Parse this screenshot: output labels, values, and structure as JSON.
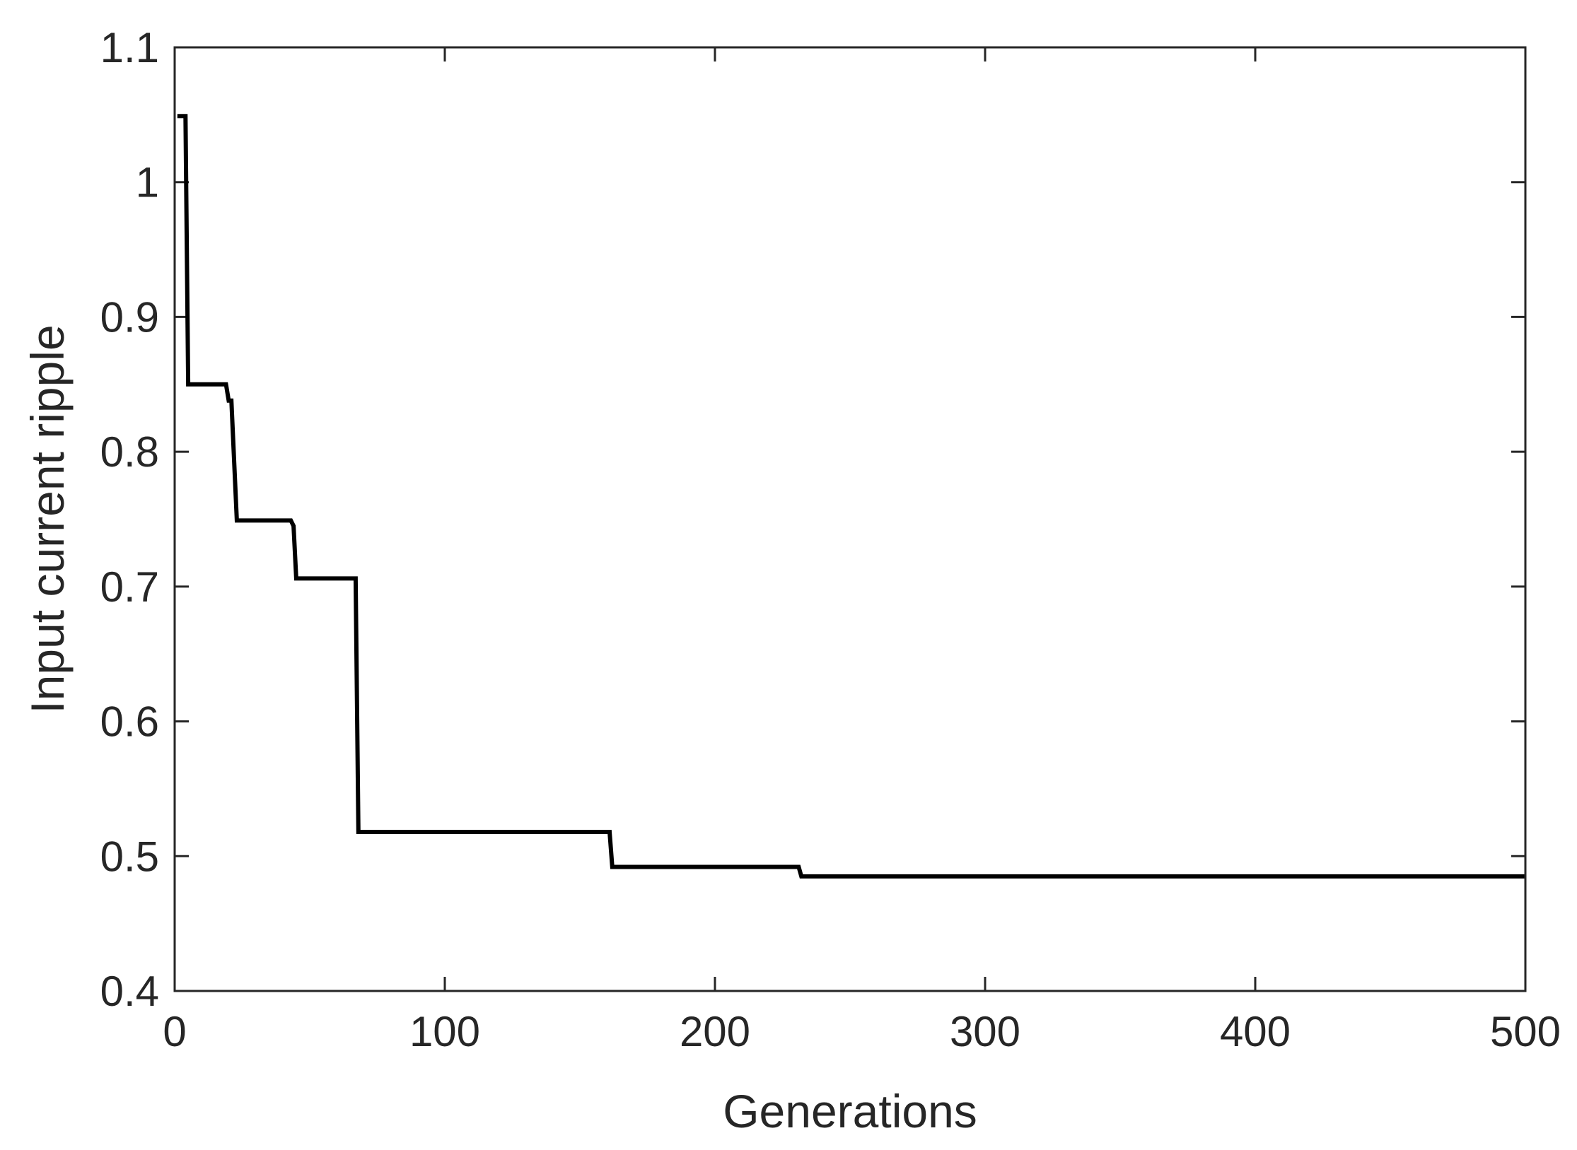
{
  "chart_data": {
    "type": "line",
    "title": "",
    "xlabel": "Generations",
    "ylabel": "Input current ripple",
    "xlim": [
      0,
      500
    ],
    "ylim": [
      0.4,
      1.1
    ],
    "xticks": [
      0,
      100,
      200,
      300,
      400,
      500
    ],
    "xtick_labels": [
      "0",
      "100",
      "200",
      "300",
      "400",
      "500"
    ],
    "yticks": [
      0.4,
      0.5,
      0.6,
      0.7,
      0.8,
      0.9,
      1.0,
      1.1
    ],
    "ytick_labels": [
      "0.4",
      "0.5",
      "0.6",
      "0.7",
      "0.8",
      "0.9",
      "1",
      "1.1"
    ],
    "grid": false,
    "legend": "none",
    "line_color": "#000000",
    "series": [
      {
        "x": [
          1,
          4,
          5,
          19,
          20,
          21,
          23,
          43,
          44,
          45,
          67,
          68,
          161,
          162,
          231,
          232,
          500
        ],
        "y": [
          1.049,
          1.049,
          0.85,
          0.85,
          0.838,
          0.838,
          0.749,
          0.749,
          0.745,
          0.706,
          0.706,
          0.518,
          0.518,
          0.492,
          0.492,
          0.485,
          0.485
        ]
      }
    ]
  }
}
